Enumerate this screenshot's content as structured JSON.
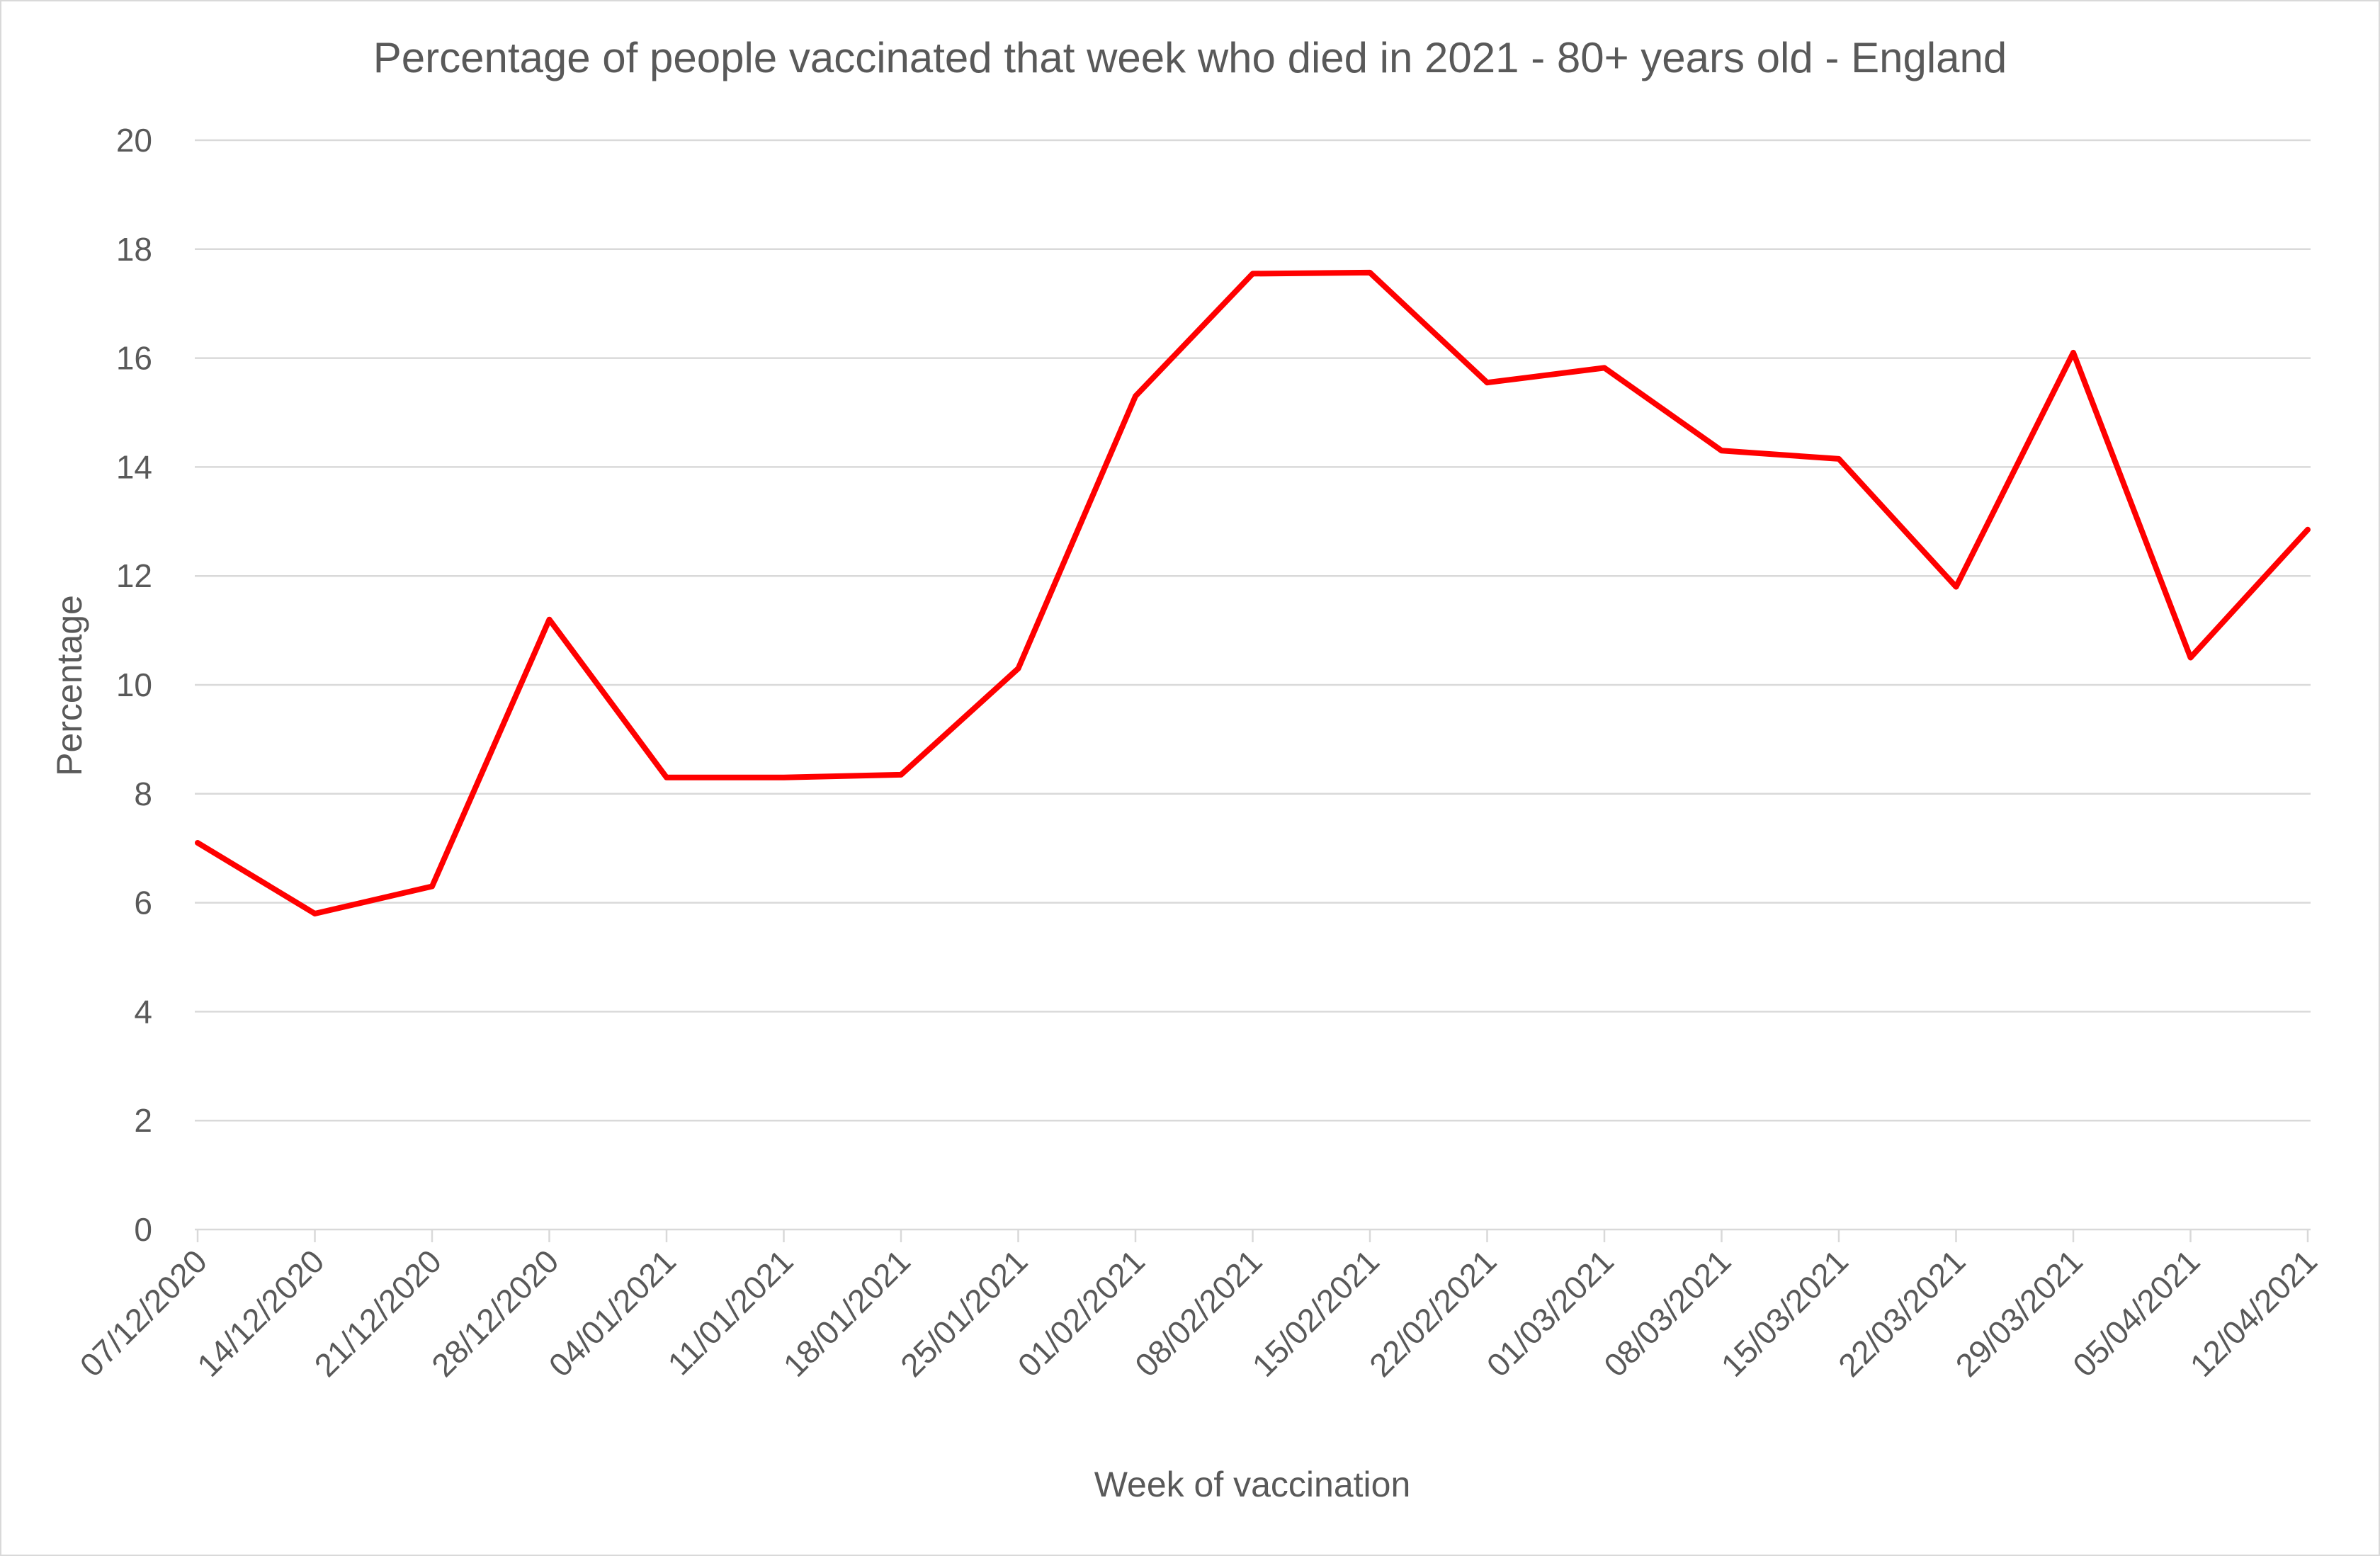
{
  "chart_data": {
    "type": "line",
    "title": "Percentage of people vaccinated that week who died in 2021 - 80+ years old - England",
    "xlabel": "Week of vaccination",
    "ylabel": "Percentage",
    "ylim": [
      0,
      20
    ],
    "yticks": [
      0,
      2,
      4,
      6,
      8,
      10,
      12,
      14,
      16,
      18,
      20
    ],
    "grid": true,
    "legend": "none",
    "categories": [
      "07/12/2020",
      "14/12/2020",
      "21/12/2020",
      "28/12/2020",
      "04/01/2021",
      "11/01/2021",
      "18/01/2021",
      "25/01/2021",
      "01/02/2021",
      "08/02/2021",
      "15/02/2021",
      "22/02/2021",
      "01/03/2021",
      "08/03/2021",
      "15/03/2021",
      "22/03/2021",
      "29/03/2021",
      "05/04/2021",
      "12/04/2021"
    ],
    "series": [
      {
        "color": "#ff0000",
        "values": [
          7.1,
          5.8,
          6.3,
          11.2,
          8.3,
          8.3,
          8.35,
          10.3,
          15.3,
          17.55,
          17.57,
          15.55,
          15.82,
          14.3,
          14.15,
          11.8,
          16.1,
          10.5,
          12.85
        ]
      }
    ]
  }
}
